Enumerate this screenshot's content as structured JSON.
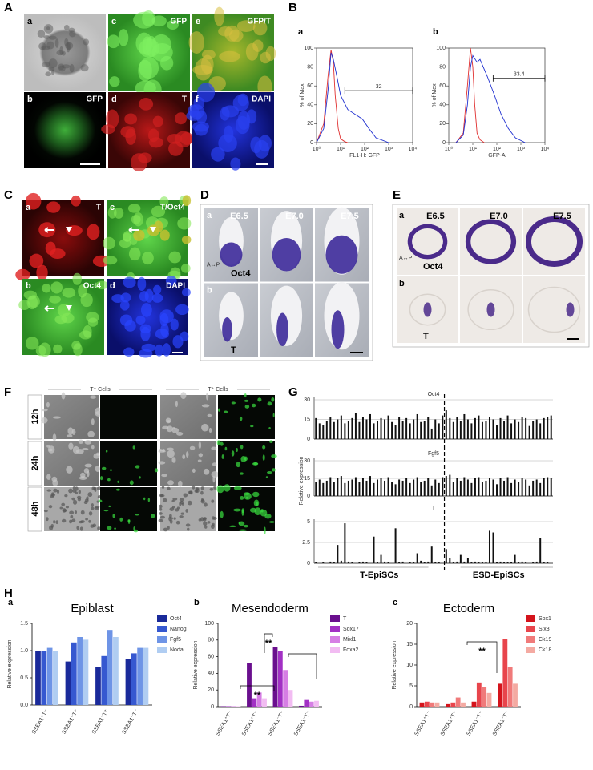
{
  "panels": {
    "A": {
      "label": "A",
      "images": [
        {
          "letter": "a"
        },
        {
          "letter": "c",
          "caption": "GFP"
        },
        {
          "letter": "e",
          "caption": "GFP/T"
        },
        {
          "letter": "b",
          "caption": "GFP"
        },
        {
          "letter": "d",
          "caption": "T"
        },
        {
          "letter": "f",
          "caption": "DAPI"
        }
      ]
    },
    "B": {
      "label": "B"
    },
    "C": {
      "label": "C",
      "images": [
        {
          "letter": "a",
          "caption": "T"
        },
        {
          "letter": "c",
          "caption": "T/Oct4"
        },
        {
          "letter": "b",
          "caption": "Oct4"
        },
        {
          "letter": "d",
          "caption": "DAPI"
        }
      ]
    },
    "D": {
      "label": "D",
      "row_letters": [
        "a",
        "b"
      ],
      "stages": [
        "E6.5",
        "E7.0",
        "E7.5"
      ],
      "axis": "A↔P",
      "genes": [
        "Oct4",
        "T"
      ]
    },
    "E": {
      "label": "E",
      "row_letters": [
        "a",
        "b"
      ],
      "stages": [
        "E6.5",
        "E7.0",
        "E7.5"
      ],
      "axis": "A↔P",
      "genes": [
        "Oct4",
        "T"
      ]
    },
    "F": {
      "label": "F",
      "groups": [
        "T⁻ Cells",
        "T⁺ Cells"
      ],
      "times": [
        "12h",
        "24h",
        "48h"
      ]
    },
    "G": {
      "label": "G"
    },
    "H": {
      "label": "H"
    }
  },
  "chart_data": [
    {
      "type": "flow",
      "panel_letter": "a",
      "xlabel": "FL1-H: GFP",
      "ylabel": "% of Max",
      "log_x": true,
      "xlim": [
        1,
        10000
      ],
      "xticks": [
        {
          "value": 1,
          "label": "10⁰"
        },
        {
          "value": 10,
          "label": "10¹"
        },
        {
          "value": 100,
          "label": "10²"
        },
        {
          "value": 1000,
          "label": "10³"
        },
        {
          "value": 10000,
          "label": "10⁴"
        }
      ],
      "ylim": [
        0,
        100
      ],
      "yticks": [
        0,
        20,
        40,
        60,
        80,
        100
      ],
      "gate": {
        "label": "32",
        "xlim": [
          15,
          10000
        ],
        "y": 55
      },
      "series": [
        {
          "color": "#e03030",
          "x": [
            1,
            2,
            3,
            4,
            5,
            6,
            8,
            10,
            15,
            20
          ],
          "values": [
            0,
            20,
            70,
            98,
            85,
            50,
            15,
            4,
            1,
            0
          ]
        },
        {
          "color": "#2030d0",
          "x": [
            1,
            2,
            3,
            4,
            5,
            7,
            10,
            20,
            40,
            80,
            150,
            300,
            1000
          ],
          "values": [
            0,
            15,
            55,
            95,
            88,
            70,
            50,
            35,
            30,
            25,
            15,
            5,
            0
          ]
        }
      ]
    },
    {
      "type": "flow",
      "panel_letter": "b",
      "xlabel": "GFP-A",
      "ylabel": "% of Max",
      "log_x": true,
      "xlim": [
        1,
        10000
      ],
      "xticks": [
        {
          "value": 1,
          "label": "10⁰"
        },
        {
          "value": 10,
          "label": "10¹"
        },
        {
          "value": 100,
          "label": "10²"
        },
        {
          "value": 1000,
          "label": "10³"
        },
        {
          "value": 10000,
          "label": "10⁴"
        }
      ],
      "ylim": [
        0,
        100
      ],
      "yticks": [
        0,
        20,
        40,
        60,
        80,
        100
      ],
      "gate": {
        "label": "33.4",
        "xlim": [
          70,
          10000
        ],
        "y": 68
      },
      "series": [
        {
          "color": "#e03030",
          "x": [
            2,
            4,
            6,
            8,
            10,
            12,
            15,
            20,
            30
          ],
          "values": [
            0,
            10,
            60,
            100,
            80,
            40,
            10,
            3,
            0
          ]
        },
        {
          "color": "#2030d0",
          "x": [
            2,
            4,
            6,
            8,
            10,
            15,
            20,
            40,
            80,
            150,
            300,
            600,
            1500
          ],
          "values": [
            0,
            8,
            40,
            80,
            92,
            85,
            88,
            70,
            50,
            30,
            15,
            5,
            0
          ]
        }
      ]
    },
    {
      "type": "multibar",
      "ylabel": "Relative expression",
      "color": "#111111",
      "grid": true,
      "groups": [
        "T-EpiSCs",
        "ESD-EpiSCs"
      ],
      "rows": [
        {
          "title": "Oct4",
          "ylim": [
            0,
            30
          ],
          "yticks": [
            0,
            15,
            30
          ],
          "values": [
            [
              16,
              12,
              11,
              14,
              17,
              13,
              15,
              18,
              12,
              14,
              16,
              20,
              13,
              17,
              15,
              19,
              12,
              14,
              16,
              15,
              18,
              13,
              11,
              17,
              14,
              16,
              12,
              15,
              19,
              13,
              14,
              17,
              8,
              15,
              12,
              18
            ],
            [
              22,
              16,
              13,
              17,
              14,
              19,
              15,
              12,
              16,
              18,
              13,
              14,
              17,
              15,
              11,
              16,
              14,
              18,
              12,
              15,
              13,
              17,
              16,
              10,
              14,
              15,
              12,
              16,
              17,
              18
            ]
          ]
        },
        {
          "title": "Fgf5",
          "ylim": [
            0,
            30
          ],
          "yticks": [
            0,
            15,
            30
          ],
          "values": [
            [
              12,
              14,
              11,
              13,
              16,
              12,
              15,
              17,
              11,
              13,
              14,
              16,
              12,
              15,
              13,
              17,
              11,
              14,
              15,
              13,
              16,
              12,
              10,
              14,
              13,
              15,
              11,
              14,
              16,
              12,
              13,
              15,
              9,
              14,
              11,
              16
            ],
            [
              17,
              18,
              12,
              15,
              13,
              16,
              14,
              11,
              15,
              16,
              12,
              13,
              15,
              14,
              10,
              15,
              13,
              16,
              11,
              14,
              12,
              15,
              14,
              9,
              13,
              14,
              11,
              15,
              16,
              15
            ]
          ]
        },
        {
          "title": "T",
          "ylim": [
            0,
            5
          ],
          "yticks": [
            0,
            2.5,
            5
          ],
          "values": [
            [
              0.1,
              0,
              0.1,
              0,
              0.2,
              0.1,
              2.2,
              0.3,
              4.8,
              0.2,
              0.1,
              0,
              0.1,
              0.2,
              0.1,
              0,
              3.2,
              0.1,
              1,
              0.2,
              0.1,
              0,
              4.2,
              0.1,
              0.2,
              0,
              0.1,
              0.1,
              1.2,
              0.3,
              0.1,
              0.2,
              2,
              0.1,
              0.1,
              0
            ],
            [
              1.7,
              0.6,
              0.1,
              0.2,
              1,
              0.2,
              0.6,
              0.1,
              0.2,
              0.1,
              0.1,
              0.1,
              3.9,
              3.7,
              0.1,
              0.2,
              0.1,
              0.1,
              0.1,
              1,
              0.1,
              0.2,
              0.1,
              0,
              0.1,
              0.2,
              3,
              0.1,
              0.1,
              0
            ]
          ]
        }
      ]
    },
    {
      "type": "bar",
      "panel_letter": "a",
      "title": "Epiblast",
      "ylabel": "Relative expression",
      "categories": [
        "SSEA1⁺T⁻",
        "SSEA1⁺T⁺",
        "SSEA1⁻T⁺",
        "SSEA1⁻T⁻"
      ],
      "ylim": [
        0,
        1.5
      ],
      "yticks": [
        {
          "value": 0,
          "label": "0.0"
        },
        0.5,
        {
          "value": 1,
          "label": "1.0"
        },
        1.5
      ],
      "series": [
        {
          "name": "Oct4",
          "color": "#1a2a9a",
          "values": [
            1.0,
            0.8,
            0.7,
            0.85
          ]
        },
        {
          "name": "Nanog",
          "color": "#3658d0",
          "values": [
            1.0,
            1.15,
            0.9,
            0.95
          ]
        },
        {
          "name": "Fgf5",
          "color": "#6e94e6",
          "values": [
            1.05,
            1.25,
            1.38,
            1.05
          ]
        },
        {
          "name": "Nodal",
          "color": "#b0cdf2",
          "values": [
            1.0,
            1.2,
            1.25,
            1.05
          ]
        }
      ]
    },
    {
      "type": "bar",
      "panel_letter": "b",
      "title": "Mesendoderm",
      "ylabel": "Relative expression",
      "categories": [
        "SSEA1⁺T⁻",
        "SSEA1⁺T⁺",
        "SSEA1⁻T⁺",
        "SSEA1⁻T⁻"
      ],
      "ylim": [
        0,
        100
      ],
      "yticks": [
        0,
        20,
        40,
        60,
        80,
        100
      ],
      "annotations": [
        "**",
        "**"
      ],
      "series": [
        {
          "name": "T",
          "color": "#6a0f8e",
          "values": [
            0.5,
            52,
            72,
            1
          ]
        },
        {
          "name": "Sox17",
          "color": "#a230c4",
          "values": [
            0.5,
            10,
            67,
            8
          ]
        },
        {
          "name": "Mixl1",
          "color": "#d67ee4",
          "values": [
            0.5,
            17,
            44,
            6
          ]
        },
        {
          "name": "Foxa2",
          "color": "#f2bcf2",
          "values": [
            0.5,
            10,
            20,
            7
          ]
        }
      ]
    },
    {
      "type": "bar",
      "panel_letter": "c",
      "title": "Ectoderm",
      "ylabel": "Relative expression",
      "categories": [
        "SSEA1⁺T⁻",
        "SSEA1⁺T⁺",
        "SSEA1⁻T⁺",
        "SSEA1⁻T⁻"
      ],
      "ylim": [
        0,
        20
      ],
      "yticks": [
        0,
        5,
        10,
        15,
        20
      ],
      "annotations": [
        "**"
      ],
      "series": [
        {
          "name": "Sox1",
          "color": "#d4141c",
          "values": [
            1,
            0.6,
            1.2,
            5.5
          ]
        },
        {
          "name": "Six3",
          "color": "#e8454c",
          "values": [
            1.2,
            1,
            5.8,
            16.3
          ]
        },
        {
          "name": "Ck19",
          "color": "#f07a7a",
          "values": [
            1,
            2.2,
            4.8,
            9.5
          ]
        },
        {
          "name": "Ck18",
          "color": "#f4aaa2",
          "values": [
            1,
            1,
            3.3,
            5.5
          ]
        }
      ]
    }
  ]
}
